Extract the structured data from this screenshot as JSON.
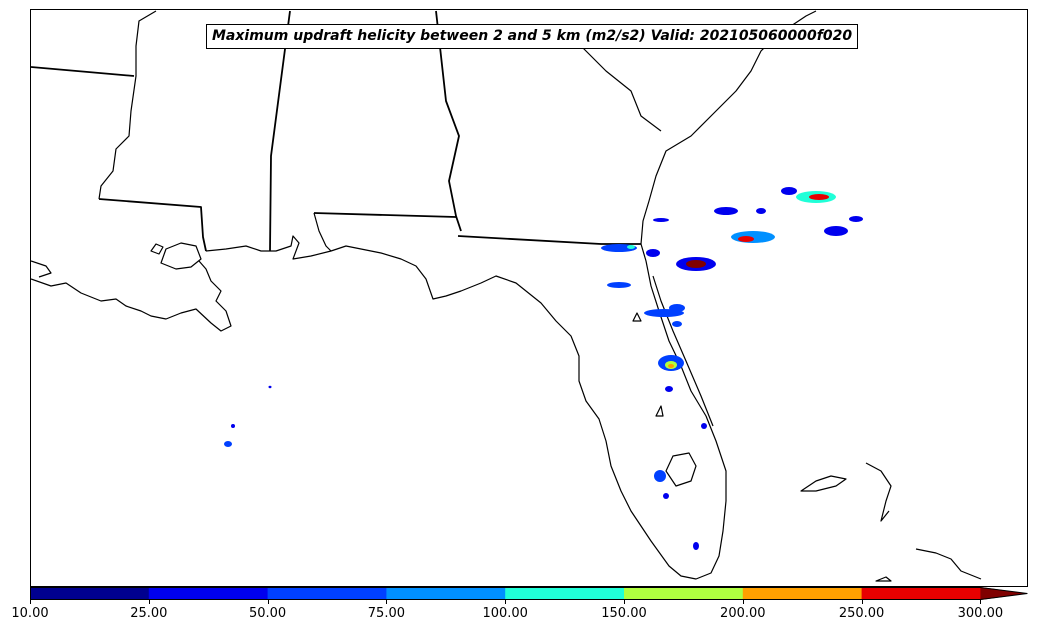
{
  "title": "Maximum updraft helicity between 2 and 5 km (m2/s2) Valid: 202105060000f020",
  "colorbar": {
    "ticks": [
      "10.00",
      "25.00",
      "50.00",
      "75.00",
      "100.00",
      "150.00",
      "200.00",
      "250.00",
      "300.00"
    ],
    "colors": [
      "#00008f",
      "#0000ee",
      "#0040ff",
      "#0090ff",
      "#20ffd8",
      "#b0ff40",
      "#ffa000",
      "#e80000",
      "#800000"
    ],
    "extend": "max"
  },
  "map": {
    "region": "Southeastern United States",
    "features": [
      "coastline",
      "state-borders"
    ]
  }
}
